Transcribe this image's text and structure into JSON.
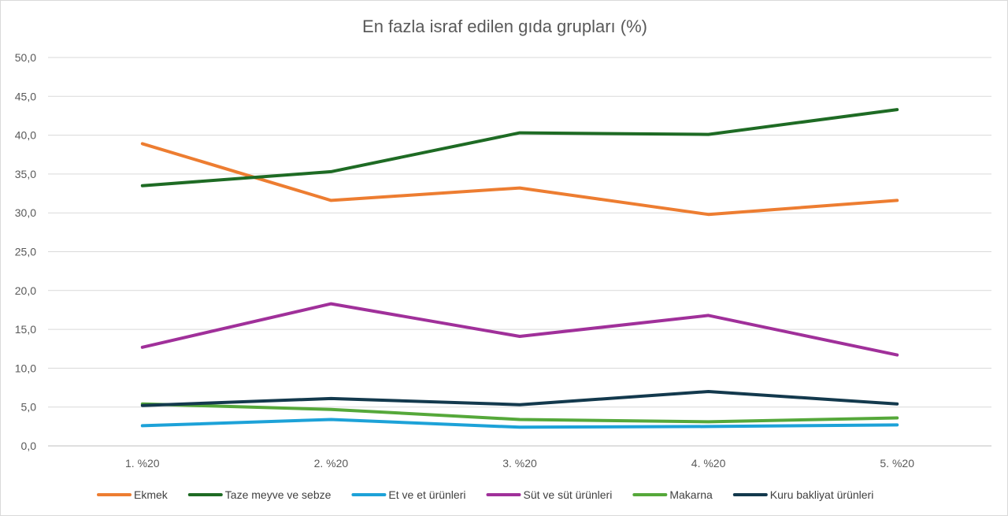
{
  "chart_data": {
    "type": "line",
    "title": "En fazla israf edilen gıda grupları (%)",
    "xlabel": "",
    "ylabel": "",
    "categories": [
      "1. %20",
      "2. %20",
      "3. %20",
      "4. %20",
      "5. %20"
    ],
    "ylim": [
      0,
      50
    ],
    "y_ticks": [
      "0,0",
      "5,0",
      "10,0",
      "15,0",
      "20,0",
      "25,0",
      "30,0",
      "35,0",
      "40,0",
      "45,0",
      "50,0"
    ],
    "grid": true,
    "legend_position": "bottom",
    "series": [
      {
        "name": "Ekmek",
        "color": "#ED7D31",
        "values": [
          38.9,
          31.6,
          33.2,
          29.8,
          31.6
        ]
      },
      {
        "name": "Taze meyve ve sebze",
        "color": "#1E6B24",
        "values": [
          33.5,
          35.3,
          40.3,
          40.1,
          43.3
        ]
      },
      {
        "name": "Et ve et ürünleri",
        "color": "#1DA2D8",
        "values": [
          2.6,
          3.4,
          2.4,
          2.5,
          2.7
        ]
      },
      {
        "name": "Süt ve süt ürünleri",
        "color": "#A0309A",
        "values": [
          12.7,
          18.3,
          14.1,
          16.8,
          11.7
        ]
      },
      {
        "name": "Makarna",
        "color": "#55A83A",
        "values": [
          5.4,
          4.7,
          3.4,
          3.1,
          3.6
        ]
      },
      {
        "name": "Kuru bakliyat ürünleri",
        "color": "#13394D",
        "values": [
          5.2,
          6.1,
          5.3,
          7.0,
          5.4
        ]
      }
    ]
  }
}
